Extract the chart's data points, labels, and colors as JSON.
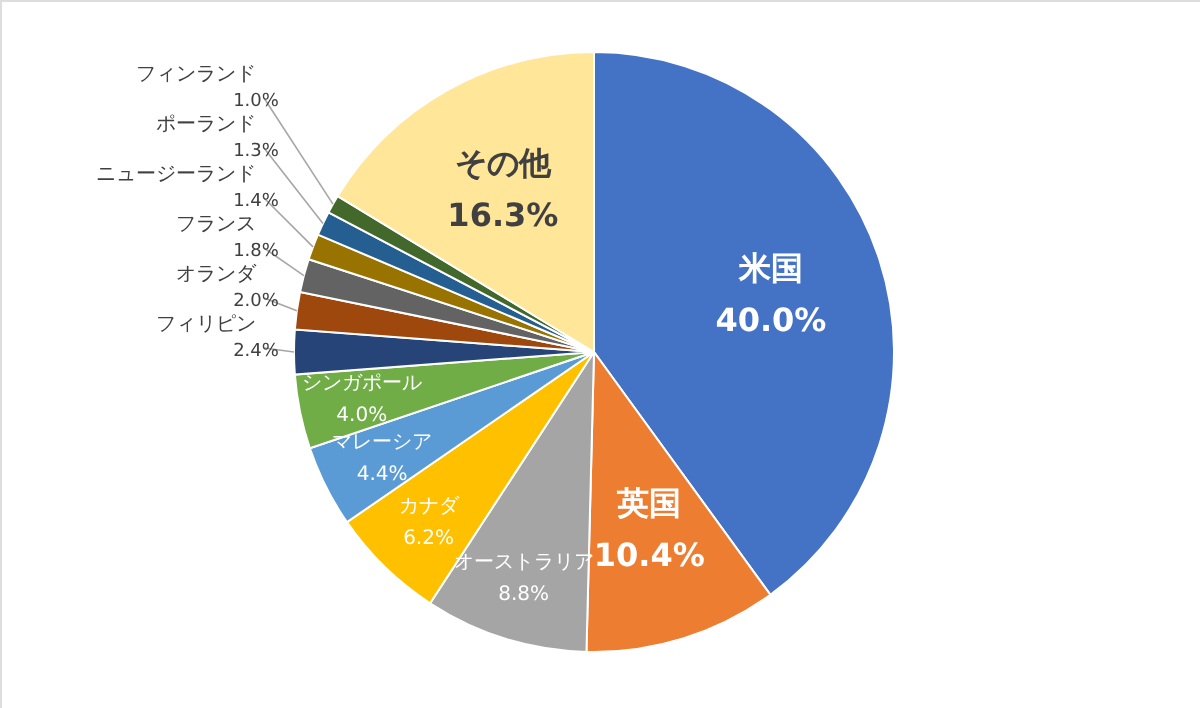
{
  "chart_data": {
    "type": "pie",
    "categories": [
      "米国",
      "英国",
      "オーストラリア",
      "カナダ",
      "マレーシア",
      "シンガポール",
      "フィリピン",
      "オランダ",
      "フランス",
      "ニュージーランド",
      "ポーランド",
      "フィンランド",
      "その他"
    ],
    "values": [
      40.0,
      10.4,
      8.8,
      6.2,
      4.4,
      4.0,
      2.4,
      2.0,
      1.8,
      1.4,
      1.3,
      1.0,
      16.3
    ],
    "value_labels": [
      "40.0%",
      "10.4%",
      "8.8%",
      "6.2%",
      "4.4%",
      "4.0%",
      "2.4%",
      "2.0%",
      "1.8%",
      "1.4%",
      "1.3%",
      "1.0%",
      "16.3%"
    ],
    "colors": [
      "#4472c4",
      "#ed7d31",
      "#a5a5a5",
      "#ffc000",
      "#5b9bd5",
      "#70ad47",
      "#264478",
      "#9e480e",
      "#636363",
      "#997300",
      "#255e91",
      "#43682b",
      "#ffe699"
    ],
    "legend": false
  }
}
